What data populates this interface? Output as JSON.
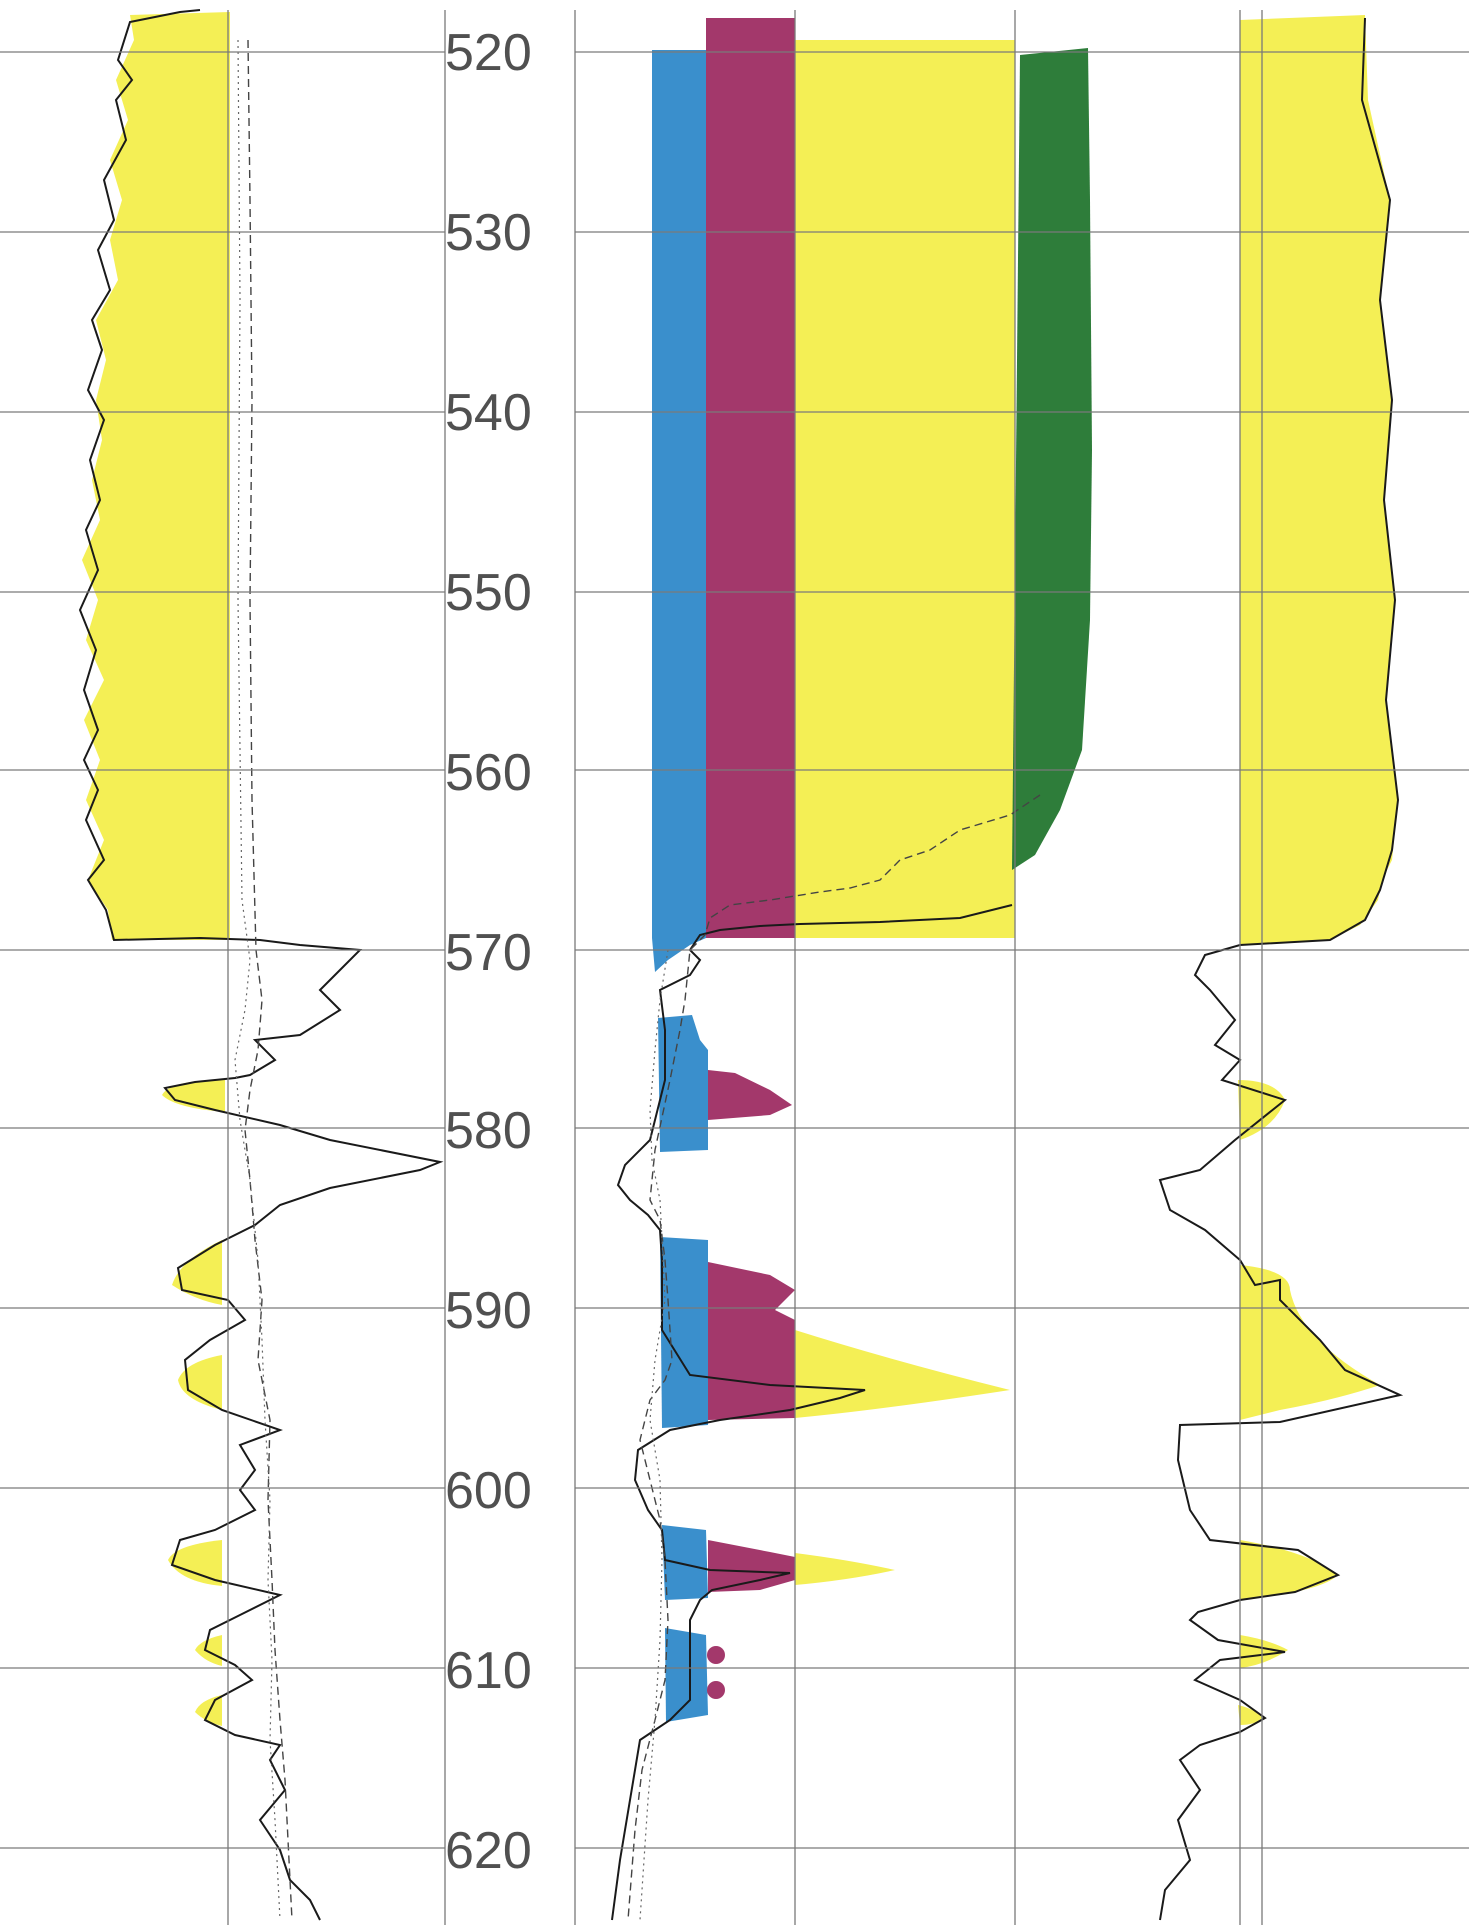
{
  "depth_labels": [
    "520",
    "530",
    "540",
    "550",
    "560",
    "570",
    "580",
    "590",
    "600",
    "610",
    "620"
  ],
  "colors": {
    "yellow": "#f4ef55",
    "blue": "#3a8fcc",
    "purple": "#a3386b",
    "green": "#2e7d3a",
    "curve": "#1a1a1a",
    "grid": "#7a7a7a"
  }
}
